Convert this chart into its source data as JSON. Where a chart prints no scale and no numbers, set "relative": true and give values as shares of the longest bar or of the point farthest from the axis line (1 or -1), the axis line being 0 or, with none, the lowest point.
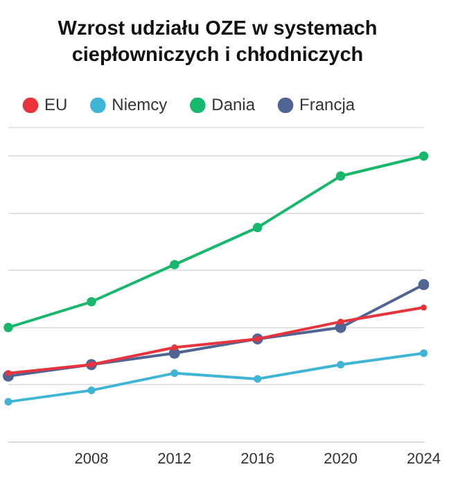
{
  "chart_data": {
    "type": "line",
    "title": "Wzrost udziału OZE w systemach ciepłowniczych i chłodniczych",
    "relative": true,
    "categories": [
      null,
      "2008",
      "2012",
      "2016",
      "2020",
      "2024"
    ],
    "series": [
      {
        "name": "EU",
        "color": "#e8333d",
        "values": [
          0.24,
          0.27,
          0.33,
          0.36,
          0.42,
          0.47
        ]
      },
      {
        "name": "Niemcy",
        "color": "#3fb5d5",
        "values": [
          0.14,
          0.18,
          0.24,
          0.22,
          0.27,
          0.31
        ]
      },
      {
        "name": "Dania",
        "color": "#17b86b",
        "values": [
          0.4,
          0.49,
          0.62,
          0.75,
          0.93,
          1
        ]
      },
      {
        "name": "Francja",
        "color": "#506594",
        "values": [
          0.23,
          0.27,
          0.31,
          0.36,
          0.4,
          0.55
        ]
      }
    ],
    "grid": "y",
    "legend": "top",
    "marker": "circle",
    "line_style": "solid"
  }
}
